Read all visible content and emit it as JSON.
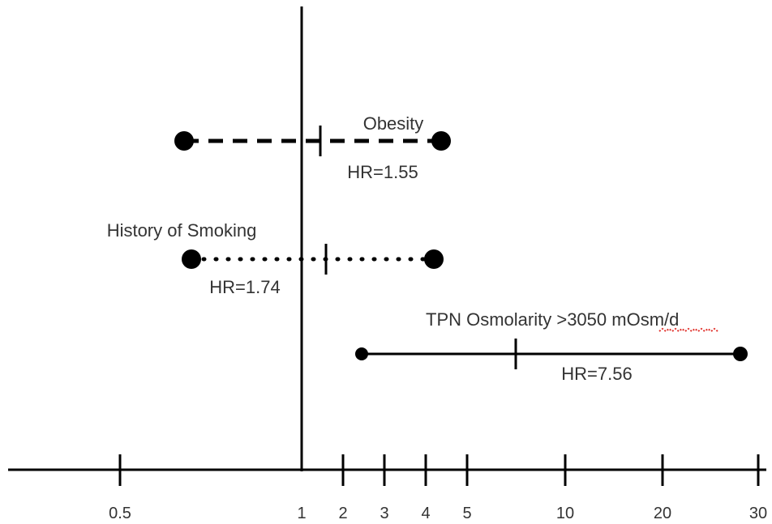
{
  "chart_data": {
    "type": "forest",
    "x_scale": "ordinal",
    "x_ticks": [
      "0.5",
      "1",
      "2",
      "3",
      "4",
      "5",
      "10",
      "20",
      "30"
    ],
    "reference_line": "1",
    "series": [
      {
        "name": "Obesity",
        "hr_label": "HR=1.55",
        "ci_low": "0.5–1",
        "hr": 1.55,
        "ci_high": "4–5",
        "line_style": "dashed"
      },
      {
        "name": "History of Smoking",
        "hr_label": "HR=1.74",
        "ci_low": "0.5–1",
        "hr": 1.74,
        "ci_high": "4",
        "line_style": "dotted"
      },
      {
        "name": "TPN Osmolarity >3050 mOsm/d",
        "hr_label": "HR=7.56",
        "ci_low": "2–3",
        "hr": 7.56,
        "ci_high": "30",
        "line_style": "solid"
      }
    ]
  }
}
